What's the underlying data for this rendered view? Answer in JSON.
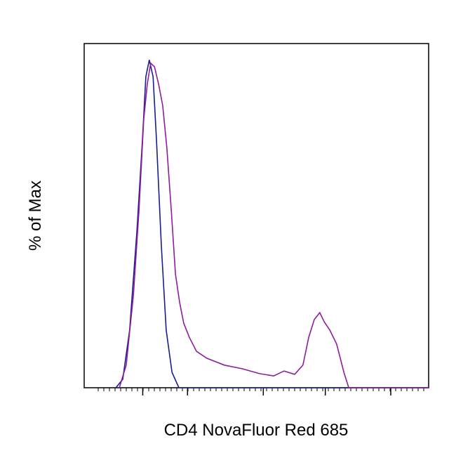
{
  "chart_data": {
    "type": "line",
    "xlabel": "CD4 NovaFluor Red 685",
    "ylabel": "% of Max",
    "xlim": [
      0,
      100
    ],
    "ylim": [
      0,
      105
    ],
    "xticks": [
      17,
      30,
      52,
      70,
      89
    ],
    "series": [
      {
        "color": "#1c1c8f",
        "x": [
          9.2,
          11.2,
          13.2,
          15.3,
          16.9,
          17.9,
          18.9,
          20,
          21,
          22.4,
          23.8,
          25.5,
          27.5,
          100
        ],
        "values": [
          0,
          2.6,
          17.6,
          47.6,
          75.4,
          94.9,
          100,
          94.9,
          75.4,
          43.3,
          17.6,
          4.7,
          0,
          0
        ]
      },
      {
        "color": "#8d1d9c",
        "x": [
          10.2,
          12.2,
          14.3,
          15.9,
          17.3,
          18.3,
          19.3,
          20.4,
          21.6,
          22.8,
          24.0,
          25.3,
          26.5,
          27.7,
          28.9,
          30.5,
          32.6,
          35.6,
          40.7,
          45.8,
          50.9,
          55.0,
          58.0,
          61.1,
          63.5,
          65.2,
          66.8,
          68.4,
          69.7,
          71.3,
          73.3,
          75.4,
          76.8,
          100
        ],
        "values": [
          0,
          6.9,
          28.3,
          54.0,
          81.9,
          92.6,
          99.0,
          97.9,
          92.6,
          86.1,
          73.3,
          54.0,
          34.7,
          26.1,
          19.7,
          15.4,
          11.1,
          9.0,
          6.9,
          5.8,
          4.3,
          3.6,
          5.1,
          4.1,
          6.9,
          15.4,
          20.8,
          22.9,
          20.1,
          17.6,
          13.3,
          4.7,
          0,
          0
        ]
      }
    ]
  }
}
